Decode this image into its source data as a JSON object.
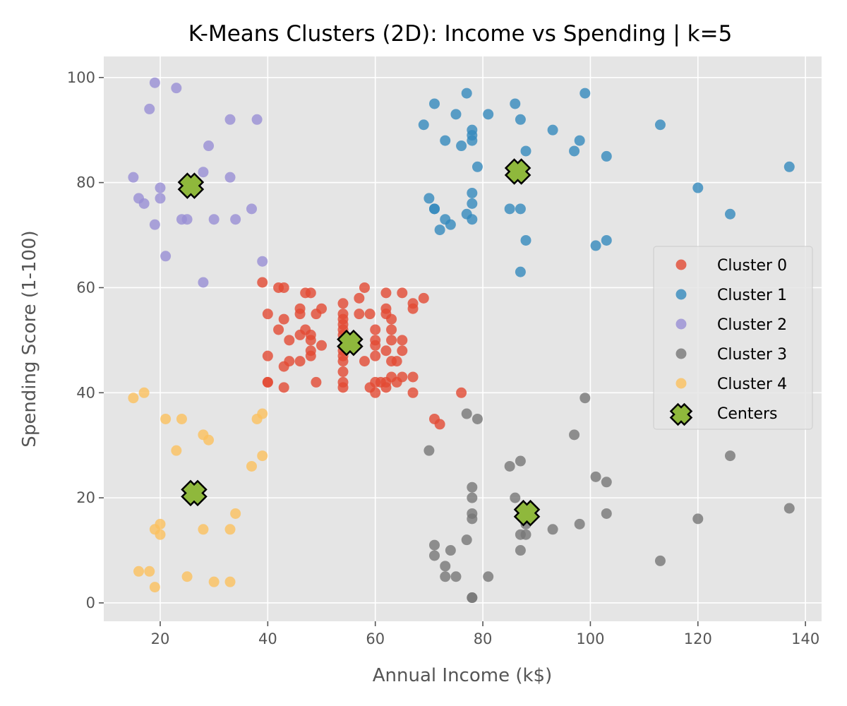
{
  "chart_data": {
    "type": "scatter",
    "title": "K-Means Clusters (2D): Income vs Spending | k=5",
    "xlabel": "Annual Income (k$)",
    "ylabel": "Spending Score (1-100)",
    "xlim": [
      9.5,
      143
    ],
    "ylim": [
      -3.5,
      104
    ],
    "xticks": [
      20,
      40,
      60,
      80,
      100,
      120,
      140
    ],
    "yticks": [
      0,
      20,
      40,
      60,
      80,
      100
    ],
    "grid": true,
    "legend_position": "right",
    "colors": {
      "plot_background": "#e5e5e5",
      "grid": "#ffffff",
      "tick": "#555555",
      "center_fill": "#8fb83c",
      "center_edge": "#000000"
    },
    "series": [
      {
        "name": "Cluster 0",
        "color": "#e24a33",
        "points": [
          [
            39,
            61
          ],
          [
            40,
            55
          ],
          [
            40,
            47
          ],
          [
            40,
            42
          ],
          [
            40,
            42
          ],
          [
            42,
            52
          ],
          [
            42,
            60
          ],
          [
            43,
            54
          ],
          [
            43,
            60
          ],
          [
            43,
            45
          ],
          [
            43,
            41
          ],
          [
            44,
            50
          ],
          [
            44,
            46
          ],
          [
            46,
            56
          ],
          [
            46,
            55
          ],
          [
            46,
            51
          ],
          [
            46,
            46
          ],
          [
            47,
            59
          ],
          [
            47,
            52
          ],
          [
            48,
            59
          ],
          [
            48,
            51
          ],
          [
            48,
            50
          ],
          [
            48,
            48
          ],
          [
            48,
            47
          ],
          [
            49,
            55
          ],
          [
            49,
            42
          ],
          [
            50,
            56
          ],
          [
            50,
            49
          ],
          [
            54,
            57
          ],
          [
            54,
            55
          ],
          [
            54,
            54
          ],
          [
            54,
            53
          ],
          [
            54,
            52
          ],
          [
            54,
            51
          ],
          [
            54,
            48
          ],
          [
            54,
            47
          ],
          [
            54,
            46
          ],
          [
            54,
            44
          ],
          [
            54,
            42
          ],
          [
            54,
            41
          ],
          [
            57,
            58
          ],
          [
            57,
            55
          ],
          [
            58,
            60
          ],
          [
            58,
            46
          ],
          [
            59,
            55
          ],
          [
            59,
            41
          ],
          [
            60,
            52
          ],
          [
            60,
            50
          ],
          [
            60,
            49
          ],
          [
            60,
            47
          ],
          [
            60,
            42
          ],
          [
            60,
            40
          ],
          [
            61,
            42
          ],
          [
            62,
            59
          ],
          [
            62,
            56
          ],
          [
            62,
            55
          ],
          [
            62,
            48
          ],
          [
            62,
            42
          ],
          [
            62,
            41
          ],
          [
            63,
            54
          ],
          [
            63,
            52
          ],
          [
            63,
            50
          ],
          [
            63,
            46
          ],
          [
            63,
            43
          ],
          [
            64,
            46
          ],
          [
            64,
            42
          ],
          [
            65,
            59
          ],
          [
            65,
            50
          ],
          [
            65,
            48
          ],
          [
            65,
            43
          ],
          [
            67,
            57
          ],
          [
            67,
            56
          ],
          [
            67,
            43
          ],
          [
            67,
            40
          ],
          [
            69,
            58
          ],
          [
            71,
            35
          ],
          [
            72,
            34
          ],
          [
            76,
            40
          ]
        ]
      },
      {
        "name": "Cluster 1",
        "color": "#348abd",
        "points": [
          [
            69,
            91
          ],
          [
            70,
            77
          ],
          [
            71,
            95
          ],
          [
            71,
            75
          ],
          [
            71,
            75
          ],
          [
            72,
            71
          ],
          [
            73,
            88
          ],
          [
            73,
            73
          ],
          [
            74,
            72
          ],
          [
            75,
            93
          ],
          [
            76,
            87
          ],
          [
            77,
            97
          ],
          [
            77,
            74
          ],
          [
            78,
            90
          ],
          [
            78,
            89
          ],
          [
            78,
            88
          ],
          [
            78,
            78
          ],
          [
            78,
            76
          ],
          [
            78,
            73
          ],
          [
            79,
            83
          ],
          [
            81,
            93
          ],
          [
            85,
            75
          ],
          [
            86,
            95
          ],
          [
            87,
            92
          ],
          [
            87,
            75
          ],
          [
            87,
            63
          ],
          [
            88,
            86
          ],
          [
            88,
            69
          ],
          [
            93,
            90
          ],
          [
            97,
            86
          ],
          [
            98,
            88
          ],
          [
            99,
            97
          ],
          [
            101,
            68
          ],
          [
            103,
            85
          ],
          [
            103,
            69
          ],
          [
            113,
            91
          ],
          [
            120,
            79
          ],
          [
            126,
            74
          ],
          [
            137,
            83
          ]
        ]
      },
      {
        "name": "Cluster 2",
        "color": "#988ed5",
        "points": [
          [
            15,
            81
          ],
          [
            16,
            77
          ],
          [
            17,
            76
          ],
          [
            18,
            94
          ],
          [
            19,
            99
          ],
          [
            19,
            72
          ],
          [
            20,
            79
          ],
          [
            20,
            77
          ],
          [
            21,
            66
          ],
          [
            23,
            98
          ],
          [
            24,
            73
          ],
          [
            25,
            73
          ],
          [
            28,
            82
          ],
          [
            28,
            61
          ],
          [
            29,
            87
          ],
          [
            30,
            73
          ],
          [
            33,
            92
          ],
          [
            33,
            81
          ],
          [
            34,
            73
          ],
          [
            37,
            75
          ],
          [
            38,
            92
          ],
          [
            39,
            65
          ]
        ]
      },
      {
        "name": "Cluster 3",
        "color": "#777777",
        "points": [
          [
            70,
            29
          ],
          [
            71,
            11
          ],
          [
            71,
            9
          ],
          [
            73,
            7
          ],
          [
            73,
            5
          ],
          [
            74,
            10
          ],
          [
            75,
            5
          ],
          [
            77,
            36
          ],
          [
            77,
            12
          ],
          [
            78,
            22
          ],
          [
            78,
            20
          ],
          [
            78,
            17
          ],
          [
            78,
            16
          ],
          [
            78,
            1
          ],
          [
            78,
            1
          ],
          [
            79,
            35
          ],
          [
            81,
            5
          ],
          [
            85,
            26
          ],
          [
            86,
            20
          ],
          [
            87,
            27
          ],
          [
            87,
            13
          ],
          [
            87,
            10
          ],
          [
            88,
            15
          ],
          [
            88,
            13
          ],
          [
            93,
            14
          ],
          [
            97,
            32
          ],
          [
            98,
            15
          ],
          [
            99,
            39
          ],
          [
            101,
            24
          ],
          [
            103,
            23
          ],
          [
            103,
            17
          ],
          [
            113,
            8
          ],
          [
            120,
            16
          ],
          [
            126,
            28
          ],
          [
            137,
            18
          ]
        ]
      },
      {
        "name": "Cluster 4",
        "color": "#fbc15e",
        "points": [
          [
            15,
            39
          ],
          [
            16,
            6
          ],
          [
            17,
            40
          ],
          [
            18,
            6
          ],
          [
            19,
            14
          ],
          [
            19,
            3
          ],
          [
            20,
            15
          ],
          [
            20,
            13
          ],
          [
            21,
            35
          ],
          [
            23,
            29
          ],
          [
            24,
            35
          ],
          [
            25,
            5
          ],
          [
            28,
            32
          ],
          [
            28,
            14
          ],
          [
            29,
            31
          ],
          [
            30,
            4
          ],
          [
            33,
            14
          ],
          [
            33,
            4
          ],
          [
            34,
            17
          ],
          [
            37,
            26
          ],
          [
            38,
            35
          ],
          [
            39,
            36
          ],
          [
            39,
            28
          ]
        ]
      }
    ],
    "centers": {
      "name": "Centers",
      "points": [
        [
          55.3,
          49.5
        ],
        [
          86.5,
          82.1
        ],
        [
          25.7,
          79.4
        ],
        [
          88.2,
          17.1
        ],
        [
          26.3,
          20.9
        ]
      ]
    }
  }
}
